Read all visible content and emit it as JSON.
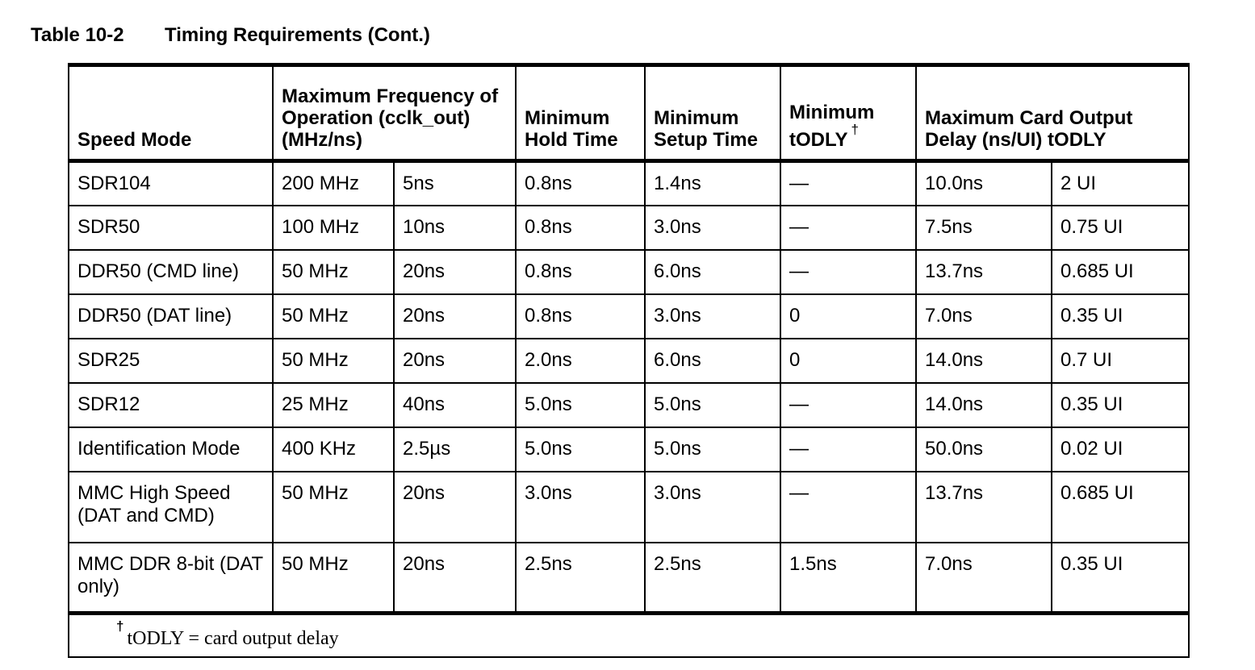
{
  "caption": {
    "label": "Table 10-2",
    "title": "Timing Requirements (Cont.)"
  },
  "headers": {
    "speed_mode": "Speed Mode",
    "max_freq": "Maximum Frequency of Operation (cclk_out) (MHz/ns)",
    "min_hold": "Minimum Hold Time",
    "min_setup": "Minimum Setup Time",
    "min_todly": "Minimum tODLY",
    "min_todly_mark": "†",
    "max_card_delay": "Maximum Card Output Delay (ns/UI) tODLY"
  },
  "rows": [
    {
      "mode": "SDR104",
      "freq": "200 MHz",
      "period": "5ns",
      "hold": "0.8ns",
      "setup": "1.4ns",
      "todly": "—",
      "delay_ns": "10.0ns",
      "delay_ui": "2 UI"
    },
    {
      "mode": "SDR50",
      "freq": "100 MHz",
      "period": "10ns",
      "hold": "0.8ns",
      "setup": "3.0ns",
      "todly": "—",
      "delay_ns": "7.5ns",
      "delay_ui": "0.75 UI"
    },
    {
      "mode": "DDR50 (CMD line)",
      "freq": "50 MHz",
      "period": "20ns",
      "hold": "0.8ns",
      "setup": "6.0ns",
      "todly": "—",
      "delay_ns": "13.7ns",
      "delay_ui": "0.685 UI"
    },
    {
      "mode": "DDR50 (DAT line)",
      "freq": "50 MHz",
      "period": "20ns",
      "hold": "0.8ns",
      "setup": "3.0ns",
      "todly": "0",
      "delay_ns": "7.0ns",
      "delay_ui": "0.35 UI"
    },
    {
      "mode": "SDR25",
      "freq": "50 MHz",
      "period": "20ns",
      "hold": "2.0ns",
      "setup": "6.0ns",
      "todly": "0",
      "delay_ns": "14.0ns",
      "delay_ui": "0.7 UI"
    },
    {
      "mode": "SDR12",
      "freq": "25 MHz",
      "period": "40ns",
      "hold": "5.0ns",
      "setup": "5.0ns",
      "todly": "—",
      "delay_ns": "14.0ns",
      "delay_ui": "0.35 UI"
    },
    {
      "mode": "Identification Mode",
      "freq": "400 KHz",
      "period": "2.5µs",
      "hold": "5.0ns",
      "setup": "5.0ns",
      "todly": "—",
      "delay_ns": "50.0ns",
      "delay_ui": "0.02 UI"
    },
    {
      "mode": "MMC High Speed (DAT and CMD)",
      "freq": "50 MHz",
      "period": "20ns",
      "hold": "3.0ns",
      "setup": "3.0ns",
      "todly": "—",
      "delay_ns": "13.7ns",
      "delay_ui": "0.685 UI"
    },
    {
      "mode": "MMC DDR 8-bit (DAT only)",
      "freq": "50 MHz",
      "period": "20ns",
      "hold": "2.5ns",
      "setup": "2.5ns",
      "todly": "1.5ns",
      "delay_ns": "7.0ns",
      "delay_ui": "0.35 UI"
    }
  ],
  "footnote": {
    "mark": "†",
    "text": "tODLY = card output delay"
  }
}
